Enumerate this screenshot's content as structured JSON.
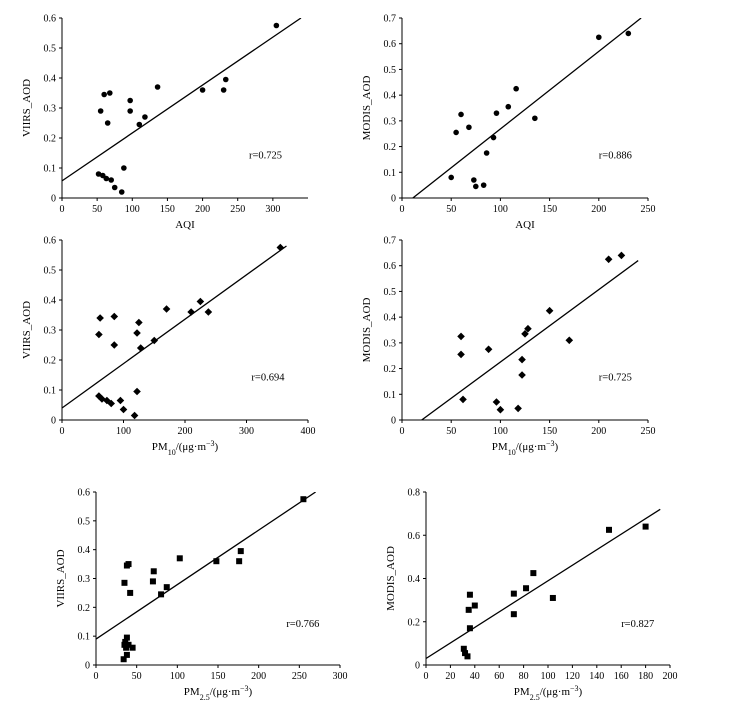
{
  "chart_data": [
    {
      "id": "viirs-aqi",
      "type": "scatter",
      "marker": "circle",
      "xlabel": "AQI",
      "ylabel": "VIIRS_AOD",
      "xlim": [
        0,
        350
      ],
      "ylim": [
        0,
        0.6
      ],
      "xticks": [
        0,
        50,
        100,
        150,
        200,
        250,
        300
      ],
      "yticks": [
        0,
        0.1,
        0.2,
        0.3,
        0.4,
        0.5,
        0.6
      ],
      "r_label": "r=0.725",
      "fit_line": [
        [
          0,
          0.057
        ],
        [
          340,
          0.6
        ]
      ],
      "points": [
        [
          52,
          0.08
        ],
        [
          58,
          0.075
        ],
        [
          63,
          0.065
        ],
        [
          70,
          0.06
        ],
        [
          75,
          0.035
        ],
        [
          85,
          0.02
        ],
        [
          88,
          0.1
        ],
        [
          55,
          0.29
        ],
        [
          60,
          0.345
        ],
        [
          68,
          0.35
        ],
        [
          65,
          0.25
        ],
        [
          97,
          0.325
        ],
        [
          97,
          0.29
        ],
        [
          110,
          0.245
        ],
        [
          118,
          0.27
        ],
        [
          136,
          0.37
        ],
        [
          200,
          0.36
        ],
        [
          230,
          0.36
        ],
        [
          233,
          0.395
        ],
        [
          305,
          0.575
        ]
      ]
    },
    {
      "id": "modis-aqi",
      "type": "scatter",
      "marker": "circle",
      "xlabel": "AQI",
      "ylabel": "MODIS_AOD",
      "xlim": [
        0,
        250
      ],
      "ylim": [
        0,
        0.7
      ],
      "xticks": [
        0,
        50,
        100,
        150,
        200,
        250
      ],
      "yticks": [
        0,
        0.1,
        0.2,
        0.3,
        0.4,
        0.5,
        0.6,
        0.7
      ],
      "r_label": "r=0.886",
      "fit_line": [
        [
          11,
          0
        ],
        [
          243,
          0.7
        ]
      ],
      "points": [
        [
          50,
          0.08
        ],
        [
          55,
          0.255
        ],
        [
          60,
          0.325
        ],
        [
          68,
          0.275
        ],
        [
          73,
          0.07
        ],
        [
          75,
          0.045
        ],
        [
          83,
          0.05
        ],
        [
          86,
          0.175
        ],
        [
          93,
          0.235
        ],
        [
          96,
          0.33
        ],
        [
          108,
          0.355
        ],
        [
          116,
          0.425
        ],
        [
          135,
          0.31
        ],
        [
          200,
          0.625
        ],
        [
          230,
          0.64
        ]
      ]
    },
    {
      "id": "viirs-pm10",
      "type": "scatter",
      "marker": "diamond",
      "xlabel": "PM10/(μg·m⁻³)",
      "ylabel": "VIIRS_AOD",
      "xlim": [
        0,
        400
      ],
      "ylim": [
        0,
        0.6
      ],
      "xticks": [
        0,
        100,
        200,
        300,
        400
      ],
      "yticks": [
        0,
        0.1,
        0.2,
        0.3,
        0.4,
        0.5,
        0.6
      ],
      "r_label": "r=0.694",
      "fit_line": [
        [
          0,
          0.04
        ],
        [
          365,
          0.58
        ]
      ],
      "points": [
        [
          60,
          0.08
        ],
        [
          65,
          0.07
        ],
        [
          73,
          0.065
        ],
        [
          80,
          0.055
        ],
        [
          95,
          0.065
        ],
        [
          100,
          0.035
        ],
        [
          118,
          0.015
        ],
        [
          122,
          0.095
        ],
        [
          60,
          0.285
        ],
        [
          62,
          0.34
        ],
        [
          85,
          0.345
        ],
        [
          85,
          0.25
        ],
        [
          122,
          0.29
        ],
        [
          125,
          0.325
        ],
        [
          128,
          0.24
        ],
        [
          150,
          0.265
        ],
        [
          170,
          0.37
        ],
        [
          210,
          0.36
        ],
        [
          225,
          0.395
        ],
        [
          238,
          0.36
        ],
        [
          355,
          0.575
        ]
      ]
    },
    {
      "id": "modis-pm10",
      "type": "scatter",
      "marker": "diamond",
      "xlabel": "PM10/(μg·m⁻³)",
      "ylabel": "MODIS_AOD",
      "xlim": [
        0,
        250
      ],
      "ylim": [
        0,
        0.7
      ],
      "xticks": [
        0,
        50,
        100,
        150,
        200,
        250
      ],
      "yticks": [
        0,
        0.1,
        0.2,
        0.3,
        0.4,
        0.5,
        0.6,
        0.7
      ],
      "r_label": "r=0.725",
      "fit_line": [
        [
          20,
          0
        ],
        [
          240,
          0.62
        ]
      ],
      "points": [
        [
          60,
          0.325
        ],
        [
          60,
          0.255
        ],
        [
          62,
          0.08
        ],
        [
          88,
          0.275
        ],
        [
          96,
          0.07
        ],
        [
          100,
          0.04
        ],
        [
          118,
          0.045
        ],
        [
          122,
          0.175
        ],
        [
          122,
          0.235
        ],
        [
          125,
          0.335
        ],
        [
          128,
          0.355
        ],
        [
          150,
          0.425
        ],
        [
          170,
          0.31
        ],
        [
          210,
          0.625
        ],
        [
          223,
          0.64
        ]
      ]
    },
    {
      "id": "viirs-pm25",
      "type": "scatter",
      "marker": "square",
      "xlabel": "PM2.5/(μg·m⁻³)",
      "ylabel": "VIIRS_AOD",
      "xlim": [
        0,
        300
      ],
      "ylim": [
        0,
        0.6
      ],
      "xticks": [
        0,
        50,
        100,
        150,
        200,
        250,
        300
      ],
      "yticks": [
        0,
        0.1,
        0.2,
        0.3,
        0.4,
        0.5,
        0.6
      ],
      "r_label": "r=0.766",
      "fit_line": [
        [
          0,
          0.09
        ],
        [
          270,
          0.6
        ]
      ],
      "points": [
        [
          34,
          0.02
        ],
        [
          35,
          0.07
        ],
        [
          36,
          0.08
        ],
        [
          37,
          0.06
        ],
        [
          38,
          0.035
        ],
        [
          38,
          0.095
        ],
        [
          40,
          0.07
        ],
        [
          45,
          0.06
        ],
        [
          35,
          0.285
        ],
        [
          38,
          0.345
        ],
        [
          40,
          0.35
        ],
        [
          42,
          0.25
        ],
        [
          70,
          0.29
        ],
        [
          71,
          0.325
        ],
        [
          80,
          0.245
        ],
        [
          87,
          0.27
        ],
        [
          103,
          0.37
        ],
        [
          148,
          0.36
        ],
        [
          176,
          0.36
        ],
        [
          178,
          0.395
        ],
        [
          255,
          0.575
        ]
      ]
    },
    {
      "id": "modis-pm25",
      "type": "scatter",
      "marker": "square",
      "xlabel": "PM2.5/(μg·m⁻³)",
      "ylabel": "MODIS_AOD",
      "xlim": [
        0,
        200
      ],
      "ylim": [
        0,
        0.8
      ],
      "xticks": [
        0,
        20,
        40,
        60,
        80,
        100,
        120,
        140,
        160,
        180,
        200
      ],
      "yticks": [
        0,
        0.2,
        0.4,
        0.6,
        0.8
      ],
      "r_label": "r=0.827",
      "fit_line": [
        [
          0,
          0.03
        ],
        [
          192,
          0.72
        ]
      ],
      "points": [
        [
          31,
          0.075
        ],
        [
          32,
          0.055
        ],
        [
          34,
          0.04
        ],
        [
          35,
          0.255
        ],
        [
          36,
          0.325
        ],
        [
          36,
          0.17
        ],
        [
          40,
          0.275
        ],
        [
          72,
          0.33
        ],
        [
          72,
          0.235
        ],
        [
          82,
          0.355
        ],
        [
          88,
          0.425
        ],
        [
          104,
          0.31
        ],
        [
          150,
          0.625
        ],
        [
          180,
          0.64
        ]
      ]
    }
  ]
}
